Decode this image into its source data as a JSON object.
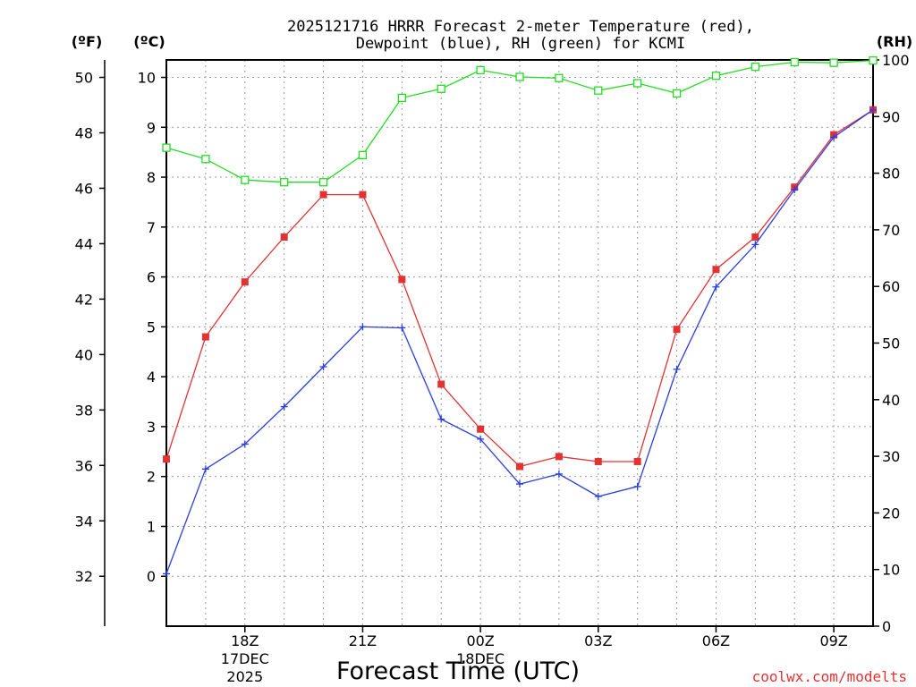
{
  "chart_data": {
    "type": "line",
    "title": "2025121716 HRRR Forecast 2-meter Temperature (red),",
    "subtitle": "Dewpoint (blue), RH (green) for KCMI",
    "xlabel": "Forecast Time (UTC)",
    "left_axis_label_f": "(ºF)",
    "left_axis_label_c": "(ºC)",
    "right_axis_label": "(RH)",
    "x_hours": [
      16,
      17,
      18,
      19,
      20,
      21,
      22,
      23,
      24,
      25,
      26,
      27,
      28,
      29,
      30,
      31,
      32,
      33,
      34
    ],
    "x_tick_hours": [
      18,
      21,
      24,
      27,
      30,
      33
    ],
    "x_tick_labels": [
      "18Z",
      "21Z",
      "00Z",
      "03Z",
      "06Z",
      "09Z"
    ],
    "x_date_labels": [
      {
        "at_hour": 18,
        "line1": "17DEC",
        "line2": "2025"
      },
      {
        "at_hour": 24,
        "line1": "18DEC",
        "line2": ""
      }
    ],
    "xlim": [
      16,
      34
    ],
    "ylim_c": [
      -1,
      10.35
    ],
    "ylim_rh": [
      0,
      100
    ],
    "y_ticks_c": [
      0,
      1,
      2,
      3,
      4,
      5,
      6,
      7,
      8,
      9,
      10
    ],
    "y_ticks_f": [
      32,
      34,
      36,
      38,
      40,
      42,
      44,
      46,
      48,
      50
    ],
    "y_ticks_rh": [
      0,
      10,
      20,
      30,
      40,
      50,
      60,
      70,
      80,
      90,
      100
    ],
    "grid": true,
    "series": [
      {
        "name": "Temperature",
        "unit": "C",
        "axis": "c",
        "color": "#e23232",
        "marker": "filled-square",
        "values": [
          2.35,
          4.8,
          5.9,
          6.8,
          7.65,
          7.65,
          5.95,
          3.85,
          2.95,
          2.2,
          2.4,
          2.3,
          2.3,
          4.95,
          6.15,
          6.8,
          7.8,
          8.85,
          9.35
        ]
      },
      {
        "name": "Dewpoint",
        "unit": "C",
        "axis": "c",
        "color": "#2a3ee0",
        "marker": "plus",
        "values": [
          0.05,
          2.15,
          2.65,
          3.4,
          4.2,
          5.0,
          4.98,
          3.15,
          2.75,
          1.85,
          2.05,
          1.6,
          1.8,
          4.15,
          5.8,
          6.65,
          7.75,
          8.8,
          9.35
        ]
      },
      {
        "name": "RH",
        "unit": "%",
        "axis": "rh",
        "color": "#22dd22",
        "marker": "open-square",
        "values": [
          84.5,
          82.5,
          78.8,
          78.4,
          78.4,
          83.2,
          93.3,
          94.9,
          98.2,
          97.0,
          96.8,
          94.6,
          95.9,
          94.1,
          97.2,
          98.8,
          99.6,
          99.5,
          99.9
        ]
      }
    ],
    "credit": "coolwx.com/modelts"
  }
}
